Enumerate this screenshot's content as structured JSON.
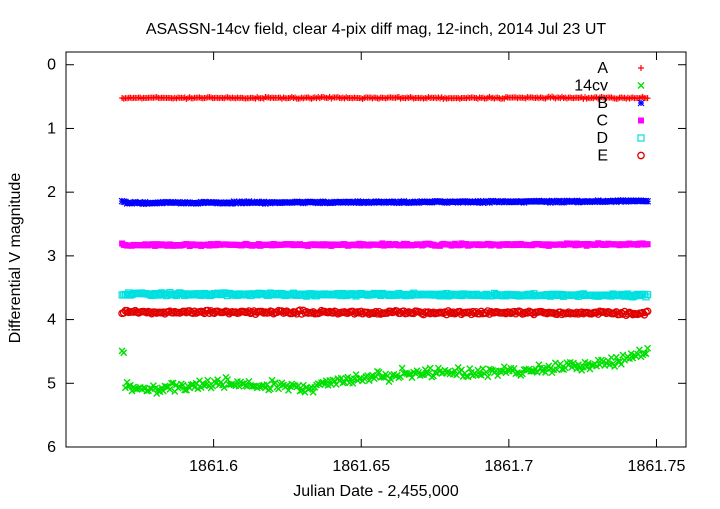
{
  "chart_data": {
    "type": "scatter",
    "title": "ASASSN-14cv field, clear 4-pix diff mag, 12-inch, 2014 Jul 23 UT",
    "xlabel": "Julian Date - 2,455,000",
    "ylabel": "Differential V magnitude",
    "xlim": [
      1861.55,
      1861.76
    ],
    "ylim": [
      6,
      -0.2
    ],
    "y_inverted": true,
    "x_ticks": [
      "1861.6",
      "1861.65",
      "1861.7",
      "1861.75"
    ],
    "x_tick_values": [
      1861.6,
      1861.65,
      1861.7,
      1861.75
    ],
    "y_ticks": [
      "0",
      "1",
      "2",
      "3",
      "4",
      "5",
      "6"
    ],
    "y_tick_values": [
      0,
      1,
      2,
      3,
      4,
      5,
      6
    ],
    "grid": false,
    "legend_position": "top-right",
    "x_range_observed": [
      1861.569,
      1861.747
    ],
    "series": [
      {
        "name": "A",
        "marker": "plus",
        "color": "#ff0000",
        "x": [
          1861.57,
          1861.75
        ],
        "y": [
          0.52,
          0.52
        ],
        "scatter_amplitude": 0.02
      },
      {
        "name": "14cv",
        "marker": "x",
        "color": "#00e000",
        "x": [
          1861.57,
          1861.58,
          1861.6,
          1861.62,
          1861.63,
          1861.65,
          1861.67,
          1861.7,
          1861.72,
          1861.74,
          1861.747
        ],
        "y": [
          5.05,
          5.1,
          5.0,
          5.05,
          5.08,
          4.9,
          4.85,
          4.82,
          4.75,
          4.62,
          4.5
        ],
        "scatter_amplitude": 0.12
      },
      {
        "name": "B",
        "marker": "star",
        "color": "#0000ff",
        "x": [
          1861.57,
          1861.75
        ],
        "y": [
          2.17,
          2.14
        ],
        "scatter_amplitude": 0.02
      },
      {
        "name": "C",
        "marker": "square-filled",
        "color": "#ff00ff",
        "x": [
          1861.57,
          1861.75
        ],
        "y": [
          2.83,
          2.82
        ],
        "scatter_amplitude": 0.025
      },
      {
        "name": "D",
        "marker": "square-open",
        "color": "#00e0e0",
        "x": [
          1861.57,
          1861.75
        ],
        "y": [
          3.6,
          3.62
        ],
        "scatter_amplitude": 0.03
      },
      {
        "name": "E",
        "marker": "circle-open",
        "color": "#e00000",
        "x": [
          1861.57,
          1861.75
        ],
        "y": [
          3.88,
          3.9
        ],
        "scatter_amplitude": 0.04
      }
    ]
  }
}
